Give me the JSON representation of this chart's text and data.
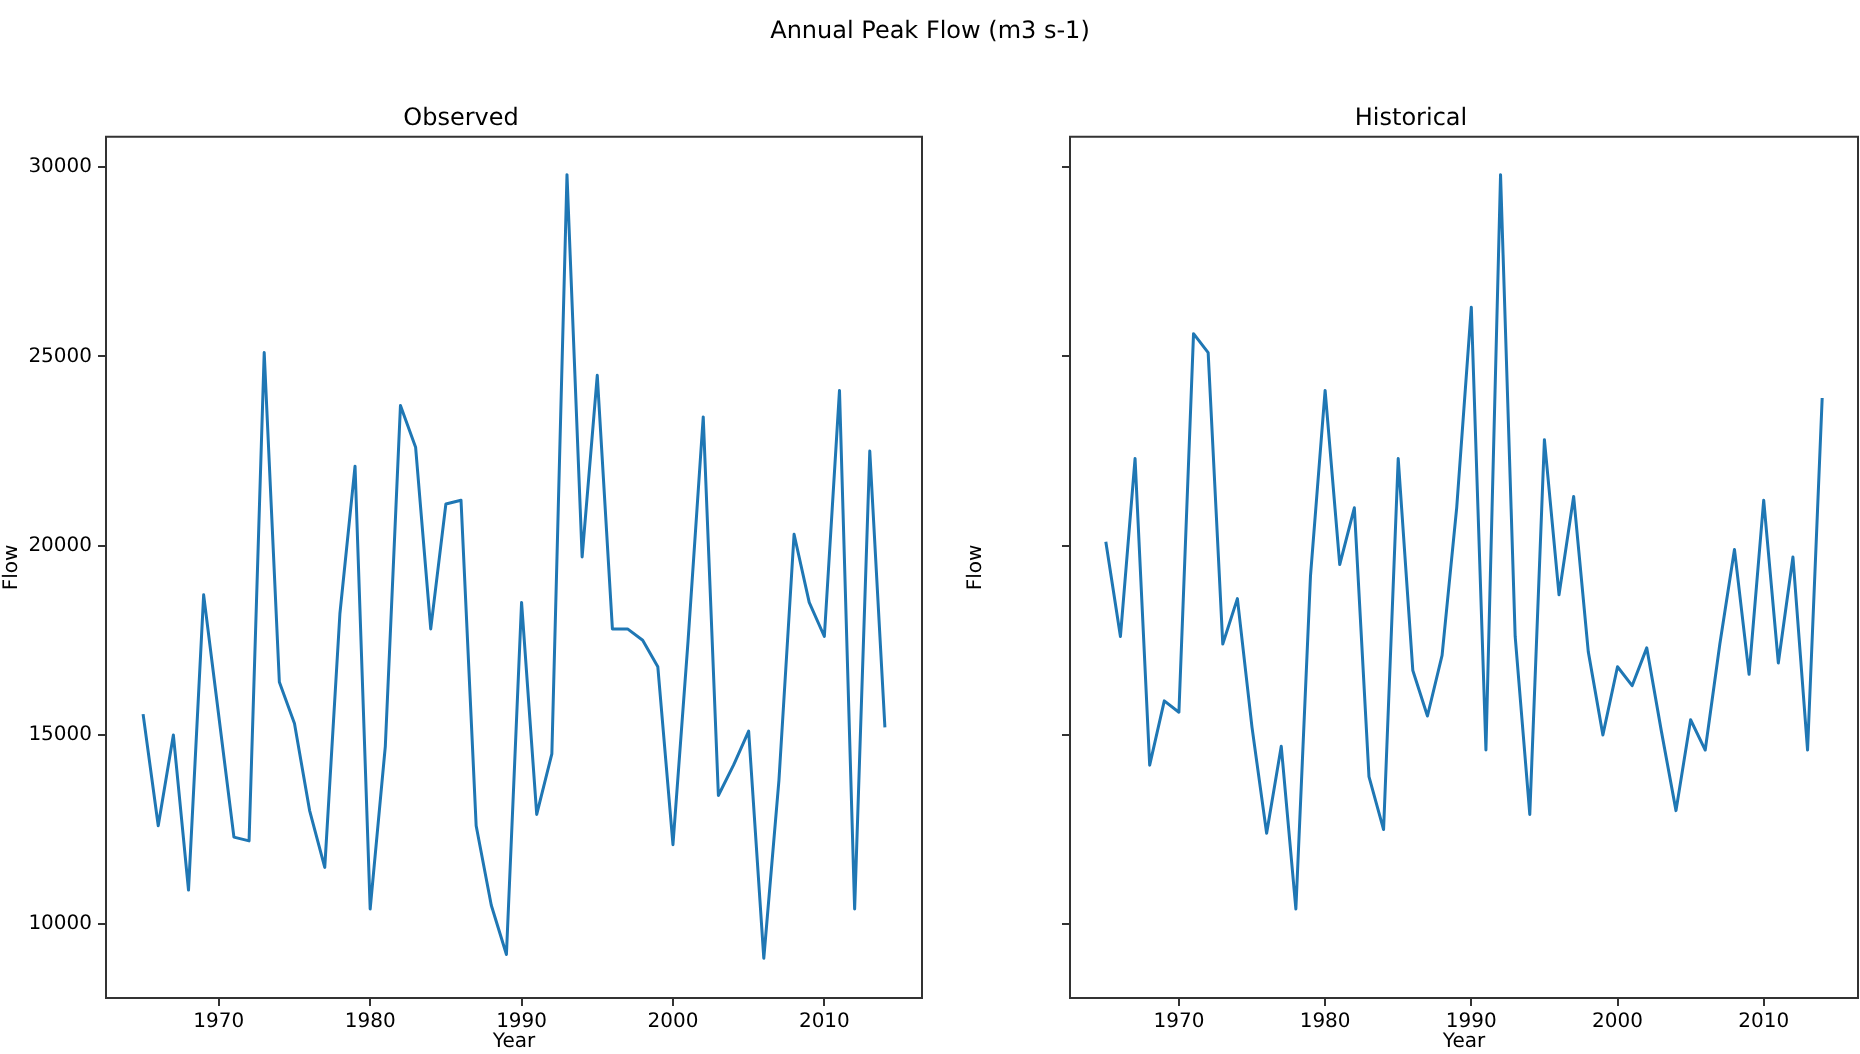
{
  "chart_data": [
    {
      "type": "line",
      "title": "Observed",
      "xlabel": "Year",
      "ylabel": "Flow",
      "annotations": [
        "Annual Peak Flow (m3 s-1)"
      ],
      "x": [
        1965,
        1966,
        1967,
        1968,
        1969,
        1970,
        1971,
        1972,
        1973,
        1974,
        1975,
        1976,
        1977,
        1978,
        1979,
        1980,
        1981,
        1982,
        1983,
        1984,
        1985,
        1986,
        1987,
        1988,
        1989,
        1990,
        1991,
        1992,
        1993,
        1994,
        1995,
        1996,
        1997,
        1998,
        1999,
        2000,
        2001,
        2002,
        2003,
        2004,
        2005,
        2006,
        2007,
        2008,
        2009,
        2010,
        2011,
        2012,
        2013,
        2014
      ],
      "series": [
        {
          "color": "#1f77b4",
          "values": [
            15550,
            12600,
            15000,
            10900,
            18700,
            15500,
            12300,
            12200,
            25100,
            16400,
            15300,
            13000,
            11500,
            18200,
            22100,
            10400,
            14700,
            23700,
            22600,
            17800,
            21100,
            21200,
            12600,
            10500,
            9200,
            18500,
            12900,
            14500,
            29800,
            19700,
            24500,
            17800,
            17800,
            17500,
            16800,
            12100,
            17500,
            23400,
            13400,
            14200,
            15100,
            9100,
            13800,
            20300,
            18500,
            17600,
            24100,
            10400,
            22500,
            15200
          ]
        }
      ],
      "xlim": [
        1962.55,
        2016.45
      ],
      "xticks": [
        1970,
        1980,
        1990,
        2000,
        2010
      ],
      "ylim": [
        8050,
        30800
      ],
      "yticks": [
        10000,
        15000,
        20000,
        25000,
        30000
      ],
      "grid": false,
      "legend": false
    },
    {
      "type": "line",
      "title": "Historical",
      "xlabel": "Year",
      "ylabel": "Flow",
      "x": [
        1965,
        1966,
        1967,
        1968,
        1969,
        1970,
        1971,
        1972,
        1973,
        1974,
        1975,
        1976,
        1977,
        1978,
        1979,
        1980,
        1981,
        1982,
        1983,
        1984,
        1985,
        1986,
        1987,
        1988,
        1989,
        1990,
        1991,
        1992,
        1993,
        1994,
        1995,
        1996,
        1997,
        1998,
        1999,
        2000,
        2001,
        2002,
        2003,
        2004,
        2005,
        2006,
        2007,
        2008,
        2009,
        2010,
        2011,
        2012,
        2013,
        2014
      ],
      "series": [
        {
          "color": "#1f77b4",
          "values": [
            20100,
            17600,
            22300,
            14200,
            15900,
            15600,
            25600,
            25100,
            17400,
            18600,
            15200,
            12400,
            14700,
            10400,
            19200,
            24100,
            19500,
            21000,
            13900,
            12500,
            22300,
            16700,
            15500,
            17100,
            21000,
            26300,
            14600,
            29800,
            17600,
            12900,
            22800,
            18700,
            21300,
            17200,
            15000,
            16800,
            16300,
            17300,
            15100,
            13000,
            15400,
            14600,
            17400,
            19900,
            16600,
            21200,
            16900,
            19700,
            14600,
            23900
          ]
        }
      ],
      "xlim": [
        1962.55,
        2016.45
      ],
      "xticks": [
        1970,
        1980,
        1990,
        2000,
        2010
      ],
      "ylim": [
        8050,
        30800
      ],
      "yticks": [
        10000,
        15000,
        20000,
        25000,
        30000
      ],
      "tick_labels": "x",
      "grid": false,
      "legend": false
    }
  ]
}
